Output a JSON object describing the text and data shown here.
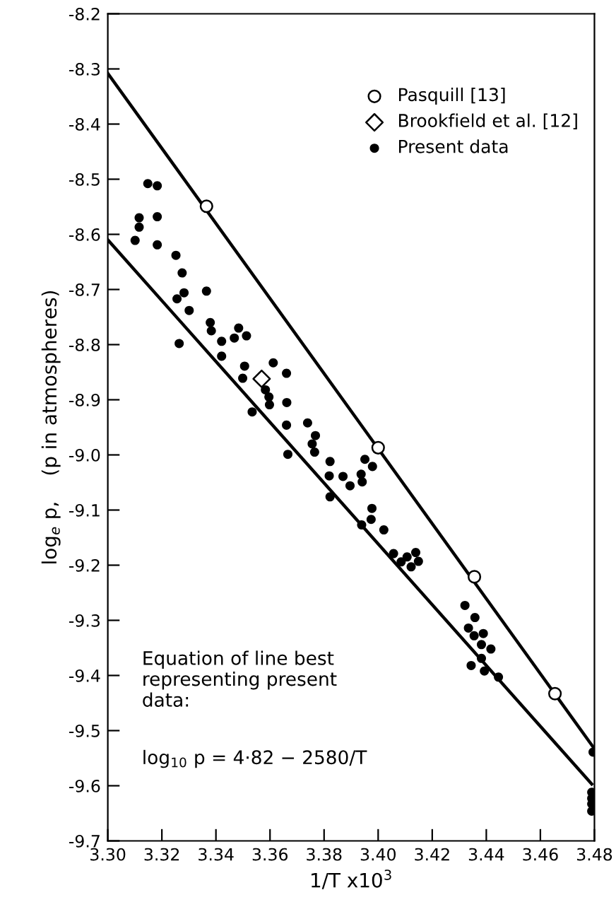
{
  "chart_data": {
    "type": "scatter",
    "xlabel": "1/T x10$^{3}$",
    "ylabel": "log$_{e}$ p,    (p in atmospheres)",
    "xlim": [
      3.3,
      3.48
    ],
    "ylim": [
      -9.7,
      -8.2
    ],
    "xticks": [
      {
        "value": 3.3,
        "label": "3.30"
      },
      {
        "value": 3.32,
        "label": "3.32"
      },
      {
        "value": 3.34,
        "label": "3.34"
      },
      {
        "value": 3.36,
        "label": "3.36"
      },
      {
        "value": 3.38,
        "label": "3.38"
      },
      {
        "value": 3.4,
        "label": "3.40"
      },
      {
        "value": 3.42,
        "label": "3.42"
      },
      {
        "value": 3.44,
        "label": "3.44"
      },
      {
        "value": 3.46,
        "label": "3.46"
      },
      {
        "value": 3.48,
        "label": "3.48"
      }
    ],
    "yticks": [
      {
        "value": -8.2,
        "label": "-8.2"
      },
      {
        "value": -8.3,
        "label": "-8.3"
      },
      {
        "value": -8.4,
        "label": "-8.4"
      },
      {
        "value": -8.5,
        "label": "-8.5"
      },
      {
        "value": -8.6,
        "label": "-8.6"
      },
      {
        "value": -8.7,
        "label": "-8.7"
      },
      {
        "value": -8.8,
        "label": "-8.8"
      },
      {
        "value": -8.9,
        "label": "-8.9"
      },
      {
        "value": -9.0,
        "label": "-9.0"
      },
      {
        "value": -9.1,
        "label": "-9.1"
      },
      {
        "value": -9.2,
        "label": "-9.2"
      },
      {
        "value": -9.3,
        "label": "-9.3"
      },
      {
        "value": -9.4,
        "label": "-9.4"
      },
      {
        "value": -9.5,
        "label": "-9.5"
      },
      {
        "value": -9.6,
        "label": "-9.6"
      },
      {
        "value": -9.7,
        "label": "-9.7"
      }
    ],
    "grid": false,
    "legend": "top right",
    "annotations": [
      "Equation of line best\nrepresenting present\ndata:",
      "log$_{10}$ p = 4·82 − 2580/T"
    ],
    "series": [
      {
        "name": "Pasquill [13]",
        "marker": "circle",
        "color": "#ffffff",
        "x": [
          3.3365,
          3.4,
          3.4356,
          3.4654
        ],
        "values": [
          -8.549,
          -8.987,
          -9.221,
          -9.433
        ]
      },
      {
        "name": "Brookfield et al. [12]",
        "marker": "diamond",
        "color": "#ffffff",
        "x": [
          3.3569
        ],
        "values": [
          -8.862
        ]
      },
      {
        "name": "Present data",
        "marker": "circle",
        "color": "#000000",
        "x": [
          3.3148,
          3.3183,
          3.3116,
          3.3116,
          3.3183,
          3.3101,
          3.3183,
          3.3252,
          3.3275,
          3.3256,
          3.3282,
          3.3365,
          3.3301,
          3.3264,
          3.3379,
          3.3383,
          3.3421,
          3.3421,
          3.3468,
          3.3484,
          3.3513,
          3.3506,
          3.3499,
          3.3612,
          3.3583,
          3.3596,
          3.3598,
          3.3534,
          3.3661,
          3.3662,
          3.3661,
          3.3666,
          3.3739,
          3.3756,
          3.3768,
          3.3765,
          3.3822,
          3.3819,
          3.3822,
          3.387,
          3.3896,
          3.3937,
          3.3941,
          3.3951,
          3.3979,
          3.3939,
          3.3977,
          3.3974,
          3.4021,
          3.4057,
          3.4085,
          3.4107,
          3.4122,
          3.4139,
          3.4149,
          3.4321,
          3.4358,
          3.4334,
          3.4355,
          3.4389,
          3.4382,
          3.4417,
          3.4382,
          3.4344,
          3.4393,
          3.4445,
          3.4795,
          3.479,
          3.479,
          3.479,
          3.479
        ],
        "values": [
          -8.508,
          -8.512,
          -8.57,
          -8.587,
          -8.568,
          -8.611,
          -8.619,
          -8.638,
          -8.67,
          -8.717,
          -8.706,
          -8.703,
          -8.738,
          -8.798,
          -8.76,
          -8.775,
          -8.794,
          -8.821,
          -8.788,
          -8.77,
          -8.784,
          -8.839,
          -8.861,
          -8.833,
          -8.882,
          -8.895,
          -8.909,
          -8.922,
          -8.852,
          -8.905,
          -8.946,
          -8.999,
          -8.942,
          -8.98,
          -8.965,
          -8.995,
          -9.012,
          -9.038,
          -9.076,
          -9.039,
          -9.056,
          -9.035,
          -9.049,
          -9.008,
          -9.021,
          -9.127,
          -9.097,
          -9.117,
          -9.136,
          -9.179,
          -9.194,
          -9.185,
          -9.203,
          -9.177,
          -9.193,
          -9.273,
          -9.295,
          -9.314,
          -9.328,
          -9.324,
          -9.344,
          -9.352,
          -9.369,
          -9.382,
          -9.392,
          -9.403,
          -9.539,
          -9.612,
          -9.623,
          -9.633,
          -9.646
        ]
      },
      {
        "type": "line",
        "color": "#000000",
        "line_style": "solid",
        "x": [
          3.3,
          3.48
        ],
        "values": [
          -8.308,
          -9.533
        ]
      },
      {
        "type": "line",
        "color": "#000000",
        "line_style": "solid",
        "x": [
          3.3,
          3.479
        ],
        "values": [
          -8.61,
          -9.597
        ]
      }
    ]
  }
}
